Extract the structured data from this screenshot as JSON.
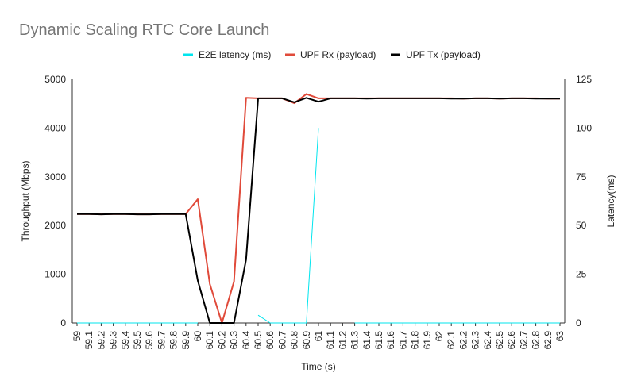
{
  "chart_data": {
    "type": "line",
    "title": "Dynamic Scaling RTC Core Launch",
    "xlabel": "Time (s)",
    "ylabel": "Throughput (Mbps)",
    "y2label": "Latency(ms)",
    "ylim": [
      0,
      5000
    ],
    "y2lim": [
      0,
      125
    ],
    "yticks": [
      "0",
      "1000",
      "2000",
      "3000",
      "4000",
      "5000"
    ],
    "y2ticks": [
      "0",
      "25",
      "50",
      "75",
      "100",
      "125"
    ],
    "legend_position": "top",
    "grid": false,
    "categories": [
      "59",
      "59.1",
      "59.2",
      "59.3",
      "59.4",
      "59.5",
      "59.6",
      "59.7",
      "59.8",
      "59.9",
      "60",
      "60.1",
      "60.2",
      "60.3",
      "60.4",
      "60.5",
      "60.6",
      "60.7",
      "60.8",
      "60.9",
      "61",
      "61.1",
      "61.2",
      "61.3",
      "61.4",
      "61.5",
      "61.6",
      "61.7",
      "61.8",
      "61.9",
      "62",
      "62.1",
      "62.2",
      "62.3",
      "62.4",
      "62.5",
      "62.6",
      "62.7",
      "62.8",
      "62.9",
      "63"
    ],
    "series": [
      {
        "name": "E2E latency (ms)",
        "color": "#00e5ee",
        "axis": "right",
        "values": [
          0,
          0,
          0,
          0,
          0,
          0,
          0,
          0,
          0,
          0,
          0,
          null,
          null,
          null,
          null,
          4,
          0,
          0,
          0,
          0,
          100,
          null,
          null,
          0,
          0,
          0,
          0,
          0,
          0,
          0,
          0,
          0,
          0,
          0,
          0,
          0,
          0,
          0,
          0,
          0,
          0
        ]
      },
      {
        "name": "UPF Rx (payload)",
        "color": "#e04a3a",
        "axis": "left",
        "values": [
          2235,
          2235,
          2230,
          2235,
          2235,
          2230,
          2230,
          2235,
          2235,
          2235,
          2540,
          800,
          0,
          850,
          4620,
          4610,
          4610,
          4610,
          4510,
          4700,
          4610,
          4610,
          4610,
          4610,
          4610,
          4610,
          4610,
          4610,
          4610,
          4610,
          4610,
          4610,
          4605,
          4610,
          4610,
          4605,
          4610,
          4610,
          4610,
          4605,
          4605
        ]
      },
      {
        "name": "UPF Tx (payload)",
        "color": "#000000",
        "axis": "left",
        "values": [
          2235,
          2235,
          2230,
          2235,
          2235,
          2230,
          2230,
          2235,
          2235,
          2235,
          870,
          0,
          0,
          0,
          1300,
          4610,
          4610,
          4610,
          4530,
          4620,
          4540,
          4610,
          4610,
          4610,
          4605,
          4610,
          4610,
          4610,
          4610,
          4610,
          4610,
          4605,
          4605,
          4610,
          4610,
          4605,
          4610,
          4610,
          4605,
          4605,
          4605
        ]
      }
    ]
  }
}
